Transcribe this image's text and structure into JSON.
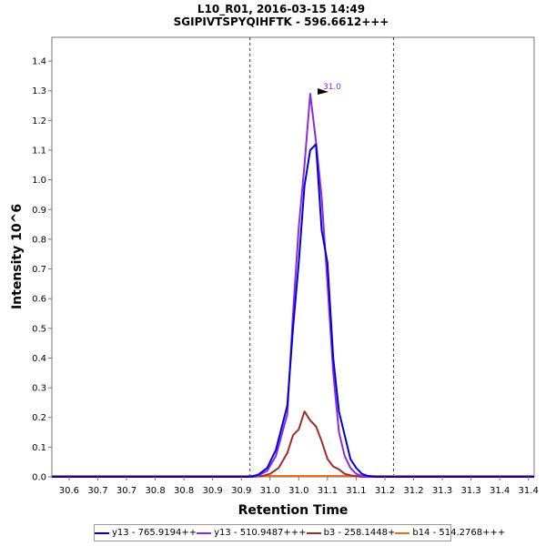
{
  "chart_data": {
    "type": "line",
    "title": "L10_R01, 2016-03-15 14:49",
    "subtitle": "SGIPIVTSPYQIHFTK - 596.6612+++",
    "xlabel": "Retention Time",
    "ylabel": "Intensity 10^6",
    "xlim": [
      30.57,
      31.41
    ],
    "ylim": [
      0,
      1.48
    ],
    "xticks": [
      "30.6",
      "30.7",
      "30.7",
      "30.8",
      "30.8",
      "30.9",
      "30.9",
      "31.0",
      "31.0",
      "31.1",
      "31.1",
      "31.2",
      "31.2",
      "31.3",
      "31.3",
      "31.4",
      "31.4"
    ],
    "xtick_values": [
      30.6,
      30.65,
      30.7,
      30.75,
      30.8,
      30.85,
      30.9,
      30.95,
      31.0,
      31.05,
      31.1,
      31.15,
      31.2,
      31.25,
      31.3,
      31.35,
      31.4
    ],
    "yticks": [
      "0.0",
      "0.1",
      "0.2",
      "0.3",
      "0.4",
      "0.5",
      "0.6",
      "0.7",
      "0.8",
      "0.9",
      "1.0",
      "1.1",
      "1.2",
      "1.3",
      "1.4"
    ],
    "ytick_values": [
      0,
      0.1,
      0.2,
      0.3,
      0.4,
      0.5,
      0.6,
      0.7,
      0.8,
      0.9,
      1.0,
      1.1,
      1.2,
      1.3,
      1.4
    ],
    "grid": false,
    "vlines": [
      30.915,
      31.165
    ],
    "peak_annotation": {
      "label": "31.0",
      "x": 31.055,
      "y": 1.29
    },
    "legend_position": "bottom",
    "series": [
      {
        "name": "y13 - 765.9194++",
        "color": "#0000dd",
        "x": [
          30.57,
          30.9,
          30.91,
          30.92,
          30.93,
          30.945,
          30.96,
          30.98,
          30.99,
          31.0,
          31.01,
          31.02,
          31.03,
          31.04,
          31.05,
          31.06,
          31.07,
          31.08,
          31.09,
          31.1,
          31.11,
          31.12,
          31.135,
          31.15,
          31.16,
          31.17,
          31.18,
          31.41
        ],
        "values": [
          0,
          0,
          0,
          0.002,
          0.008,
          0.03,
          0.09,
          0.24,
          0.5,
          0.72,
          0.98,
          1.1,
          1.12,
          0.83,
          0.72,
          0.4,
          0.22,
          0.14,
          0.06,
          0.03,
          0.01,
          0.003,
          0,
          0,
          0,
          0,
          0,
          0
        ]
      },
      {
        "name": "y13 - 510.9487+++",
        "color": "#8a2be2",
        "x": [
          30.57,
          30.9,
          30.91,
          30.92,
          30.93,
          30.945,
          30.96,
          30.98,
          30.99,
          31.0,
          31.01,
          31.02,
          31.03,
          31.04,
          31.05,
          31.06,
          31.07,
          31.08,
          31.09,
          31.1,
          31.11,
          31.12,
          31.135,
          31.15,
          31.16,
          31.17,
          31.18,
          31.41
        ],
        "values": [
          0,
          0,
          0,
          0.002,
          0.005,
          0.02,
          0.07,
          0.21,
          0.55,
          0.84,
          1.05,
          1.29,
          1.13,
          0.94,
          0.65,
          0.35,
          0.15,
          0.07,
          0.03,
          0.01,
          0.003,
          0,
          0,
          0,
          0,
          0,
          0,
          0
        ]
      },
      {
        "name": "b3 - 258.1448+",
        "color": "#a52a2a",
        "x": [
          30.57,
          30.92,
          30.935,
          30.95,
          30.965,
          30.98,
          30.99,
          31.0,
          31.01,
          31.02,
          31.03,
          31.04,
          31.05,
          31.06,
          31.07,
          31.08,
          31.09,
          31.1,
          31.11,
          31.12,
          31.13,
          31.41
        ],
        "values": [
          0,
          0,
          0.002,
          0.01,
          0.03,
          0.08,
          0.14,
          0.16,
          0.22,
          0.19,
          0.17,
          0.12,
          0.06,
          0.035,
          0.025,
          0.01,
          0.005,
          0.002,
          0,
          0,
          0,
          0
        ]
      },
      {
        "name": "b14 - 514.2768+++",
        "color": "#e07020",
        "x": [
          30.57,
          31.41
        ],
        "values": [
          0.003,
          0.003
        ]
      }
    ]
  }
}
